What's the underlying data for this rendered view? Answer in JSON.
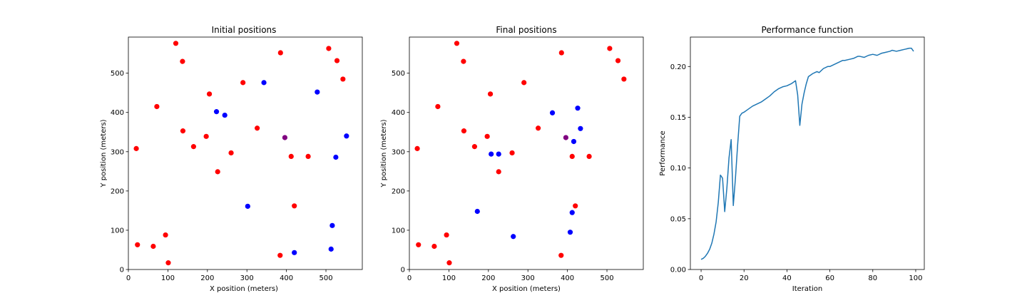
{
  "chart_data": [
    {
      "type": "scatter",
      "title": "Initial positions",
      "xlabel": "X position (meters)",
      "ylabel": "Y position (meters)",
      "xlim": [
        0,
        592
      ],
      "ylim": [
        0,
        592
      ],
      "xticks": [
        0,
        100,
        200,
        300,
        400,
        500
      ],
      "yticks": [
        0,
        100,
        200,
        300,
        400,
        500
      ],
      "grid": false,
      "series": [
        {
          "color": "#ff0000",
          "x": [
            120,
            507,
            137,
            385,
            528,
            543,
            290,
            205,
            72,
            326,
            138,
            197,
            165,
            20,
            260,
            412,
            455,
            226,
            420,
            23,
            94,
            63,
            384,
            101
          ],
          "y": [
            576,
            563,
            530,
            552,
            532,
            485,
            476,
            447,
            415,
            360,
            353,
            339,
            313,
            308,
            297,
            288,
            288,
            249,
            162,
            63,
            88,
            59,
            36,
            17
          ]
        },
        {
          "color": "#0000ff",
          "x": [
            343,
            478,
            223,
            244,
            552,
            525,
            302,
            516,
            420,
            513
          ],
          "y": [
            476,
            452,
            402,
            393,
            340,
            286,
            161,
            112,
            43,
            52
          ]
        },
        {
          "color": "#800080",
          "x": [
            396
          ],
          "y": [
            336
          ]
        }
      ]
    },
    {
      "type": "scatter",
      "title": "Final positions",
      "xlabel": "X position (meters)",
      "ylabel": "Y position (meters)",
      "xlim": [
        0,
        592
      ],
      "ylim": [
        0,
        592
      ],
      "xticks": [
        0,
        100,
        200,
        300,
        400,
        500
      ],
      "yticks": [
        0,
        100,
        200,
        300,
        400,
        500
      ],
      "grid": false,
      "series": [
        {
          "color": "#ff0000",
          "x": [
            120,
            507,
            137,
            385,
            528,
            543,
            290,
            205,
            72,
            326,
            138,
            197,
            165,
            20,
            260,
            412,
            455,
            226,
            420,
            23,
            94,
            63,
            384,
            101
          ],
          "y": [
            576,
            563,
            530,
            552,
            532,
            485,
            476,
            447,
            415,
            360,
            353,
            339,
            313,
            308,
            297,
            288,
            288,
            249,
            162,
            63,
            88,
            59,
            36,
            17
          ]
        },
        {
          "color": "#0000ff",
          "x": [
            362,
            426,
            433,
            416,
            207,
            226,
            172,
            412,
            263,
            407
          ],
          "y": [
            399,
            411,
            359,
            326,
            294,
            294,
            148,
            145,
            84,
            95
          ]
        },
        {
          "color": "#800080",
          "x": [
            396
          ],
          "y": [
            336
          ]
        }
      ]
    },
    {
      "type": "line",
      "title": "Performance function",
      "xlabel": "Iteration",
      "ylabel": "Performance",
      "xlim": [
        -5,
        104
      ],
      "ylim": [
        0,
        0.229
      ],
      "xticks": [
        0,
        20,
        40,
        60,
        80,
        100
      ],
      "yticks": [
        0.0,
        0.05,
        0.1,
        0.15,
        0.2
      ],
      "ytick_labels": [
        "0.00",
        "0.05",
        "0.10",
        "0.15",
        "0.20"
      ],
      "grid": false,
      "series": [
        {
          "color": "#1f77b4",
          "x": [
            0,
            1,
            2,
            3,
            4,
            5,
            6,
            7,
            8,
            9,
            10,
            11,
            12,
            13,
            14,
            15,
            16,
            17,
            18,
            19,
            20,
            22,
            24,
            26,
            28,
            30,
            32,
            34,
            36,
            38,
            40,
            42,
            44,
            45,
            46,
            47,
            48,
            49,
            50,
            52,
            54,
            55,
            57,
            59,
            60,
            62,
            64,
            66,
            67,
            69,
            71,
            73,
            74,
            76,
            78,
            80,
            82,
            84,
            86,
            88,
            89,
            91,
            93,
            95,
            97,
            98,
            99
          ],
          "y": [
            0.01,
            0.011,
            0.013,
            0.016,
            0.02,
            0.026,
            0.035,
            0.047,
            0.066,
            0.093,
            0.09,
            0.057,
            0.08,
            0.11,
            0.128,
            0.063,
            0.09,
            0.122,
            0.151,
            0.154,
            0.155,
            0.158,
            0.161,
            0.163,
            0.165,
            0.168,
            0.171,
            0.175,
            0.178,
            0.18,
            0.181,
            0.183,
            0.186,
            0.172,
            0.142,
            0.163,
            0.174,
            0.183,
            0.19,
            0.193,
            0.195,
            0.194,
            0.198,
            0.2,
            0.2,
            0.202,
            0.204,
            0.206,
            0.206,
            0.207,
            0.208,
            0.21,
            0.21,
            0.209,
            0.211,
            0.212,
            0.211,
            0.213,
            0.214,
            0.215,
            0.216,
            0.215,
            0.216,
            0.217,
            0.218,
            0.218,
            0.215
          ]
        }
      ]
    }
  ]
}
